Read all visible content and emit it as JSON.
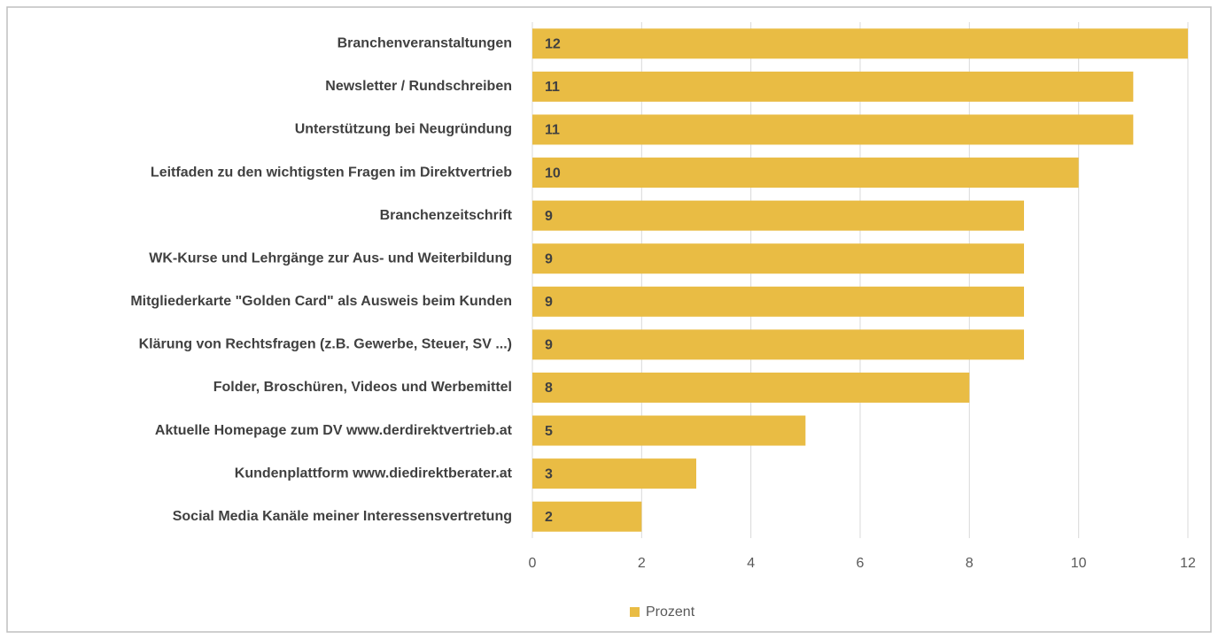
{
  "chart_data": {
    "type": "bar",
    "orientation": "horizontal",
    "categories": [
      "Branchenveranstaltungen",
      "Newsletter / Rundschreiben",
      "Unterstützung bei Neugründung",
      "Leitfaden zu den wichtigsten Fragen im Direktvertrieb",
      "Branchenzeitschrift",
      "WK-Kurse und Lehrgänge zur Aus- und Weiterbildung",
      "Mitgliederkarte \"Golden Card\" als Ausweis beim Kunden",
      "Klärung von Rechtsfragen (z.B. Gewerbe, Steuer, SV ...)",
      "Folder, Broschüren, Videos und Werbemittel",
      "Aktuelle Homepage zum DV www.derdirektvertrieb.at",
      "Kundenplattform www.diedirektberater.at",
      "Social Media Kanäle meiner Interessensvertretung"
    ],
    "series": [
      {
        "name": "Prozent",
        "color": "#e9bc44",
        "values": [
          12,
          11,
          11,
          10,
          9,
          9,
          9,
          9,
          8,
          5,
          3,
          2
        ]
      }
    ],
    "xlim": [
      0,
      12
    ],
    "xticks": [
      0,
      2,
      4,
      6,
      8,
      10,
      12
    ],
    "grid": true,
    "legend": "bottom"
  }
}
